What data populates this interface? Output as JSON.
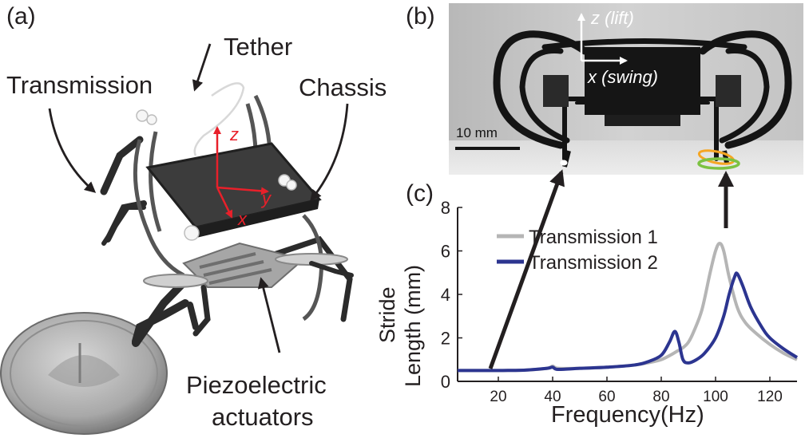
{
  "panel_a": {
    "label": "(a)",
    "callouts": {
      "tether": "Tether",
      "transmission": "Transmission",
      "chassis": "Chassis",
      "actuator_line1": "Piezoelectric",
      "actuator_line2": "actuators"
    },
    "axes": {
      "z": "z",
      "y": "y",
      "x": "x"
    },
    "axis_color": "#e8202a"
  },
  "panel_b": {
    "label": "(b)",
    "z_axis": "z (lift)",
    "x_axis": "x (swing)",
    "scale_bar": "10 mm",
    "trajectory_colors": [
      "#f5a623",
      "#7cc242"
    ]
  },
  "panel_c": {
    "label": "(c)"
  },
  "chart_data": {
    "type": "line",
    "xlabel": "Frequency(Hz)",
    "ylabel_line1": "Stride",
    "ylabel_line2": "Length (mm)",
    "xlim": [
      5,
      130
    ],
    "ylim": [
      0,
      8
    ],
    "xticks": [
      20,
      40,
      60,
      80,
      100,
      120
    ],
    "yticks": [
      0,
      2,
      4,
      6,
      8
    ],
    "legend_position": "top-left",
    "series": [
      {
        "name": "Transmission 1",
        "color": "#b5b5b5",
        "x": [
          5,
          10,
          20,
          30,
          38,
          40,
          42,
          50,
          60,
          70,
          75,
          80,
          84,
          86,
          88,
          90,
          92,
          95,
          98,
          100,
          101.5,
          103,
          105,
          108,
          111,
          115,
          120,
          125,
          130
        ],
        "y": [
          0.5,
          0.5,
          0.5,
          0.52,
          0.6,
          0.7,
          0.6,
          0.6,
          0.65,
          0.75,
          0.85,
          1.0,
          1.25,
          1.4,
          1.55,
          1.8,
          2.3,
          3.3,
          5.0,
          6.0,
          6.35,
          6.0,
          4.8,
          3.4,
          2.7,
          2.2,
          1.7,
          1.3,
          1.0
        ]
      },
      {
        "name": "Transmission 2",
        "color": "#2c3590",
        "x": [
          5,
          10,
          20,
          30,
          38,
          40,
          42,
          50,
          60,
          70,
          75,
          80,
          83,
          85,
          86.5,
          88,
          90,
          93,
          96,
          100,
          103,
          105,
          107,
          108,
          110,
          113,
          117,
          120,
          125,
          130
        ],
        "y": [
          0.5,
          0.5,
          0.5,
          0.52,
          0.6,
          0.65,
          0.55,
          0.6,
          0.65,
          0.75,
          0.9,
          1.2,
          1.8,
          2.3,
          1.8,
          1.0,
          0.85,
          1.0,
          1.3,
          2.0,
          3.0,
          4.0,
          4.8,
          4.95,
          4.4,
          3.4,
          2.5,
          2.0,
          1.5,
          1.1
        ]
      }
    ]
  }
}
